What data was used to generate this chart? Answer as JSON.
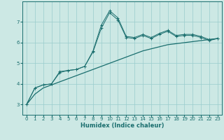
{
  "xlabel": "Humidex (Indice chaleur)",
  "bg_color": "#cce8e4",
  "grid_color": "#99cccc",
  "line_color": "#1a6e6e",
  "x": [
    0,
    1,
    2,
    3,
    4,
    5,
    6,
    7,
    8,
    9,
    10,
    11,
    12,
    13,
    14,
    15,
    16,
    17,
    18,
    19,
    20,
    21,
    22,
    23
  ],
  "line1": [
    3.0,
    3.8,
    3.95,
    4.0,
    4.6,
    4.65,
    4.7,
    4.85,
    5.6,
    6.85,
    7.55,
    7.2,
    6.3,
    6.25,
    6.4,
    6.25,
    6.45,
    6.6,
    6.35,
    6.4,
    6.4,
    6.3,
    6.15,
    6.2
  ],
  "line2": [
    3.0,
    3.8,
    3.95,
    4.0,
    4.55,
    4.65,
    4.7,
    4.85,
    5.55,
    6.7,
    7.45,
    7.1,
    6.25,
    6.2,
    6.35,
    6.2,
    6.4,
    6.55,
    6.3,
    6.35,
    6.35,
    6.25,
    6.1,
    6.2
  ],
  "line3": [
    3.0,
    3.5,
    3.8,
    3.95,
    4.1,
    4.25,
    4.4,
    4.55,
    4.7,
    4.85,
    5.0,
    5.15,
    5.3,
    5.45,
    5.6,
    5.7,
    5.8,
    5.9,
    5.95,
    6.0,
    6.05,
    6.1,
    6.15,
    6.2
  ],
  "ylim": [
    2.5,
    8.0
  ],
  "yticks": [
    3,
    4,
    5,
    6,
    7
  ],
  "xlim": [
    -0.5,
    23.5
  ],
  "tick_fontsize": 5.0,
  "xlabel_fontsize": 6.0
}
